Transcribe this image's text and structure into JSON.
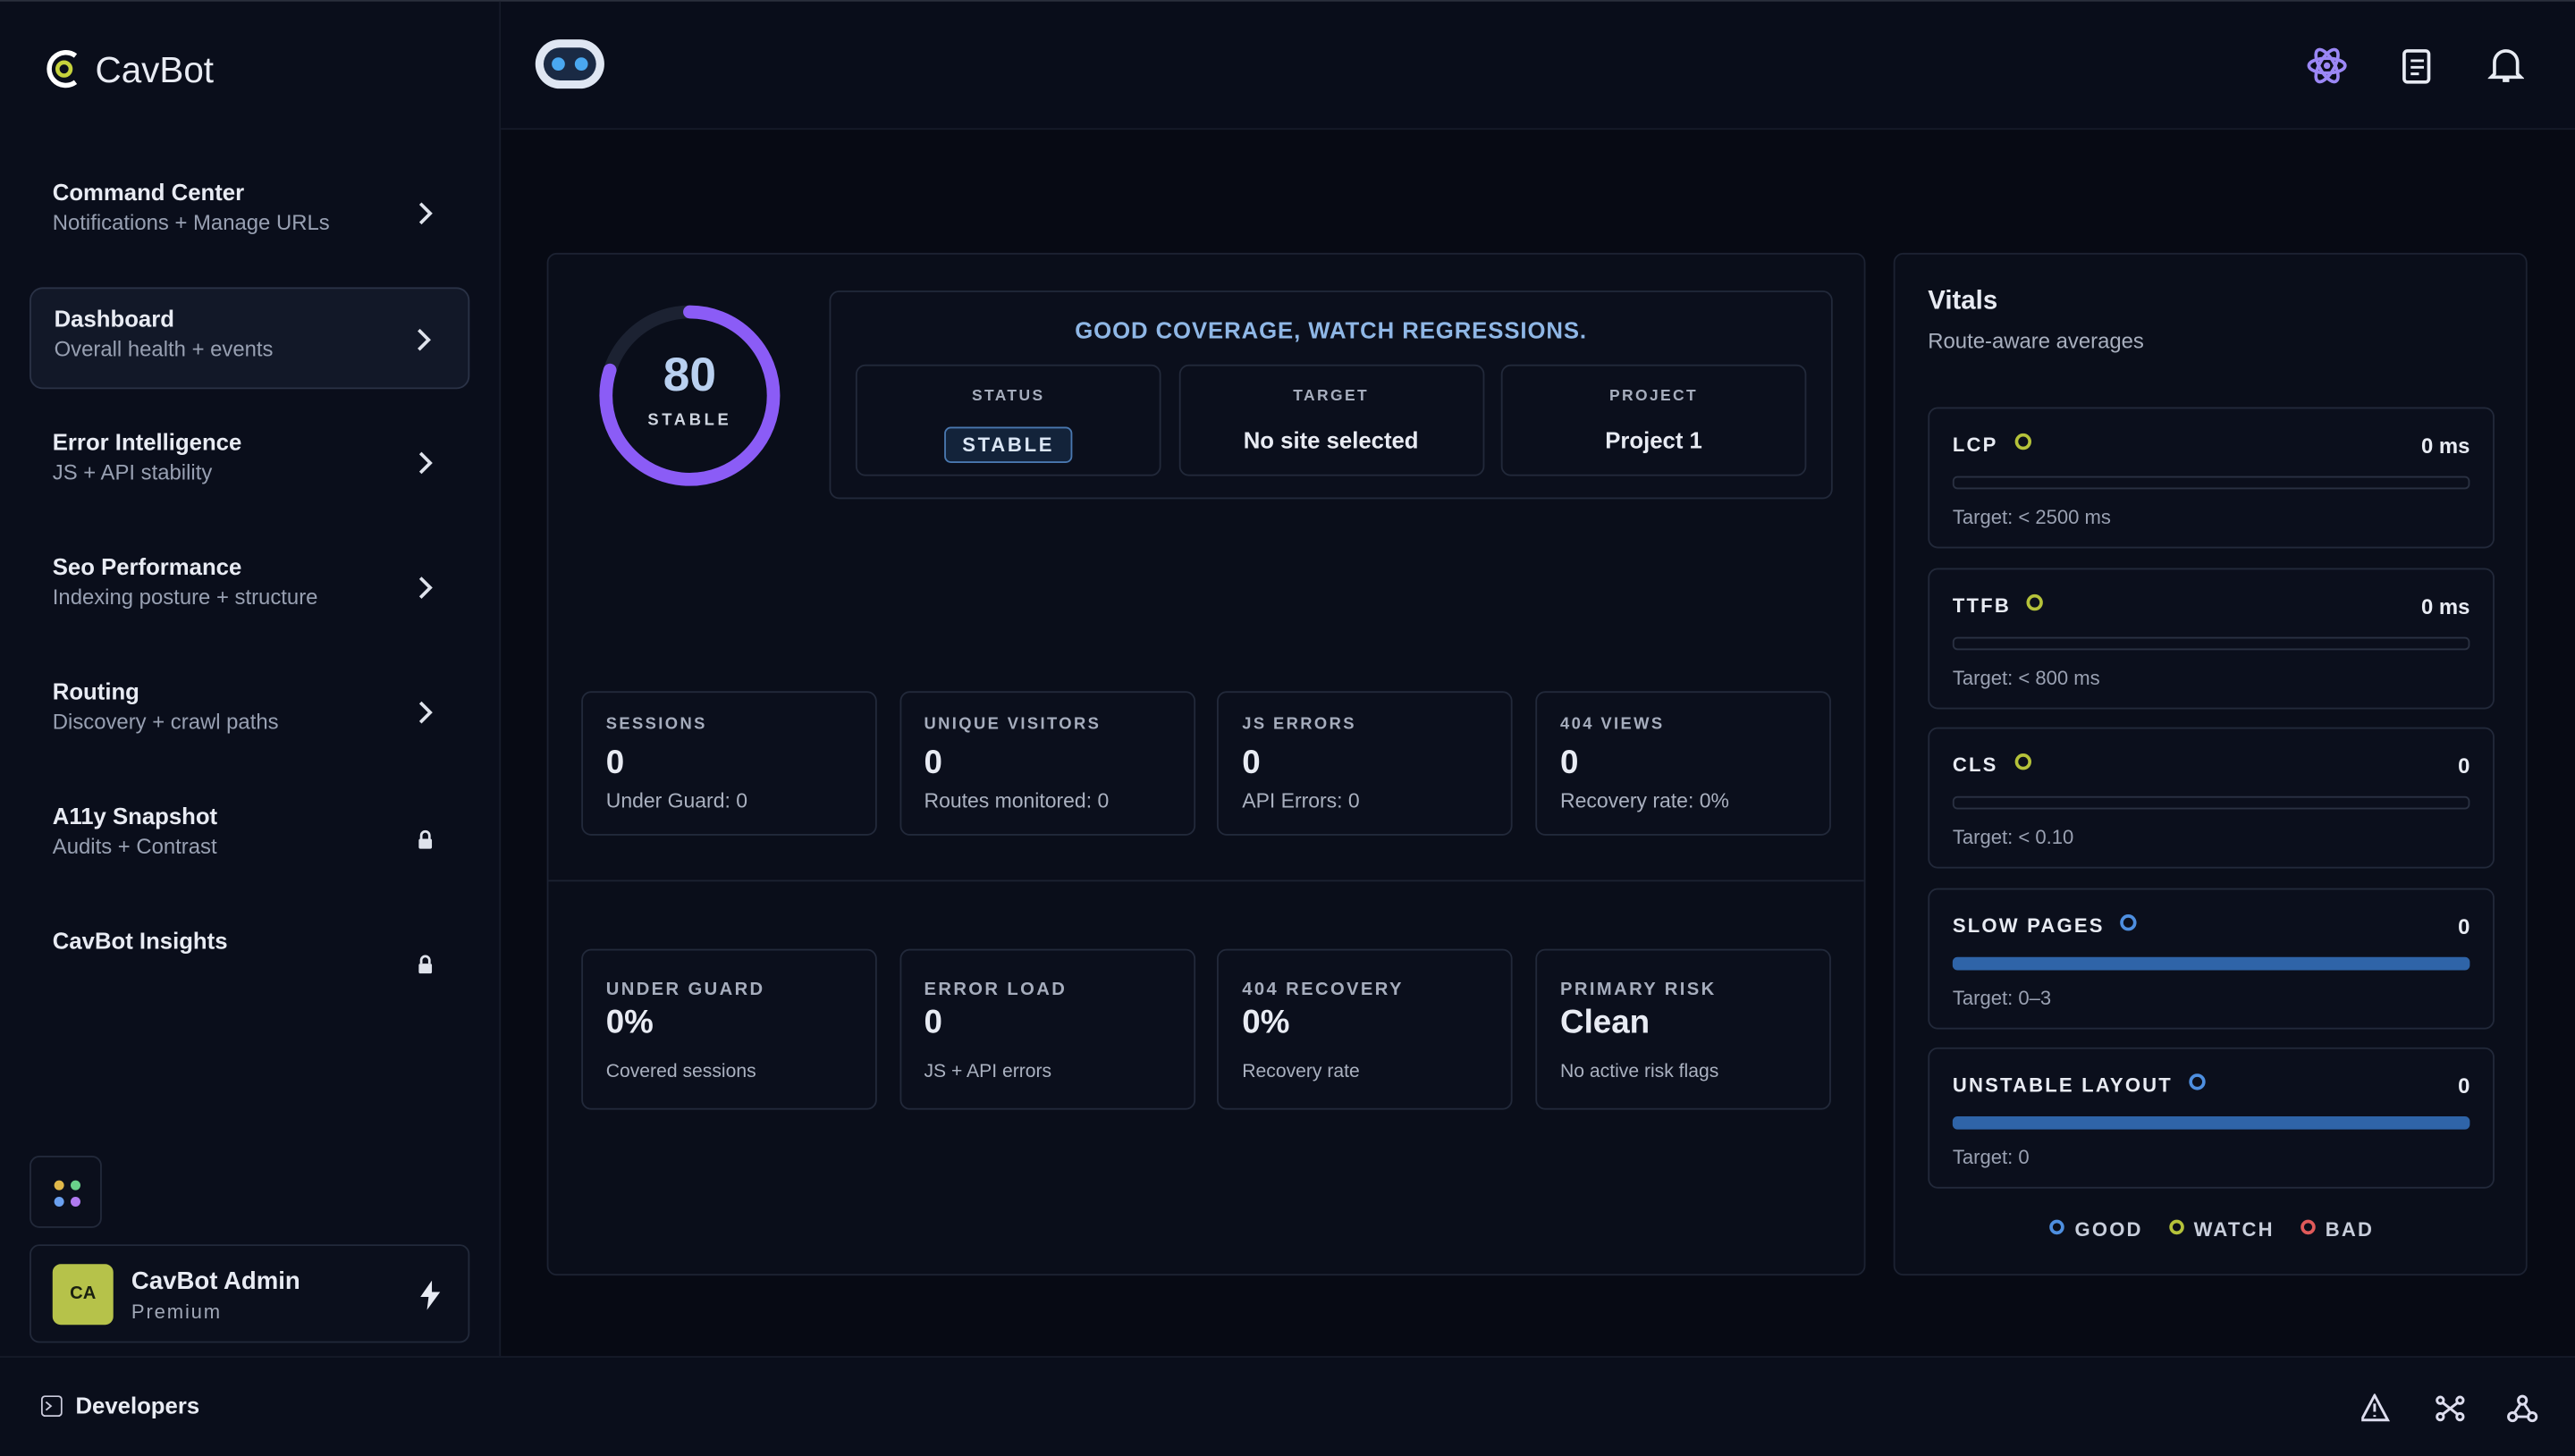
{
  "brand": "CavBot",
  "nav": [
    {
      "title": "Command Center",
      "subtitle": "Notifications + Manage URLs",
      "icon": "chevron"
    },
    {
      "title": "Dashboard",
      "subtitle": "Overall health + events",
      "icon": "chevron"
    },
    {
      "title": "Error Intelligence",
      "subtitle": "JS + API stability",
      "icon": "chevron"
    },
    {
      "title": "Seo Performance",
      "subtitle": "Indexing posture + structure",
      "icon": "chevron"
    },
    {
      "title": "Routing",
      "subtitle": "Discovery + crawl paths",
      "icon": "chevron"
    },
    {
      "title": "A11y Snapshot",
      "subtitle": "Audits + Contrast",
      "icon": "lock"
    },
    {
      "title": "CavBot Insights",
      "icon": "lock"
    }
  ],
  "user": {
    "initials": "CA",
    "name": "CavBot Admin",
    "plan": "Premium"
  },
  "footer": {
    "label": "Developers"
  },
  "score": {
    "value": "80",
    "label": "STABLE"
  },
  "coverage": {
    "headline": "GOOD COVERAGE, WATCH REGRESSIONS.",
    "cells": [
      {
        "label": "STATUS",
        "value": "STABLE"
      },
      {
        "label": "TARGET",
        "value": "No site selected"
      },
      {
        "label": "PROJECT",
        "value": "Project 1"
      }
    ]
  },
  "stats": [
    {
      "label": "SESSIONS",
      "value": "0",
      "note": "Under Guard: 0"
    },
    {
      "label": "UNIQUE VISITORS",
      "value": "0",
      "note": "Routes monitored: 0"
    },
    {
      "label": "JS ERRORS",
      "value": "0",
      "note": "API Errors: 0"
    },
    {
      "label": "404 VIEWS",
      "value": "0",
      "note": "Recovery rate: 0%"
    }
  ],
  "summary": [
    {
      "label": "UNDER GUARD",
      "value": "0%",
      "note": "Covered sessions"
    },
    {
      "label": "ERROR LOAD",
      "value": "0",
      "note": "JS + API errors"
    },
    {
      "label": "404 RECOVERY",
      "value": "0%",
      "note": "Recovery rate"
    },
    {
      "label": "PRIMARY RISK",
      "value": "Clean",
      "note": "No active risk flags"
    }
  ],
  "vitals": {
    "title": "Vitals",
    "subtitle": "Route-aware averages",
    "items": [
      {
        "name": "LCP",
        "status": "watch",
        "value": "0 ms",
        "target": "Target: < 2500 ms"
      },
      {
        "name": "TTFB",
        "status": "watch",
        "value": "0 ms",
        "target": "Target: < 800 ms"
      },
      {
        "name": "CLS",
        "status": "watch",
        "value": "0",
        "target": "Target: < 0.10"
      },
      {
        "name": "SLOW PAGES",
        "status": "good",
        "value": "0",
        "target": "Target: 0–3"
      },
      {
        "name": "UNSTABLE LAYOUT",
        "status": "good",
        "value": "0",
        "target": "Target: 0"
      }
    ],
    "legend": [
      {
        "key": "good",
        "label": "GOOD",
        "color": "#4e8fe0"
      },
      {
        "key": "watch",
        "label": "WATCH",
        "color": "#b5c23a"
      },
      {
        "key": "bad",
        "label": "BAD",
        "color": "#e05a5a"
      }
    ]
  }
}
